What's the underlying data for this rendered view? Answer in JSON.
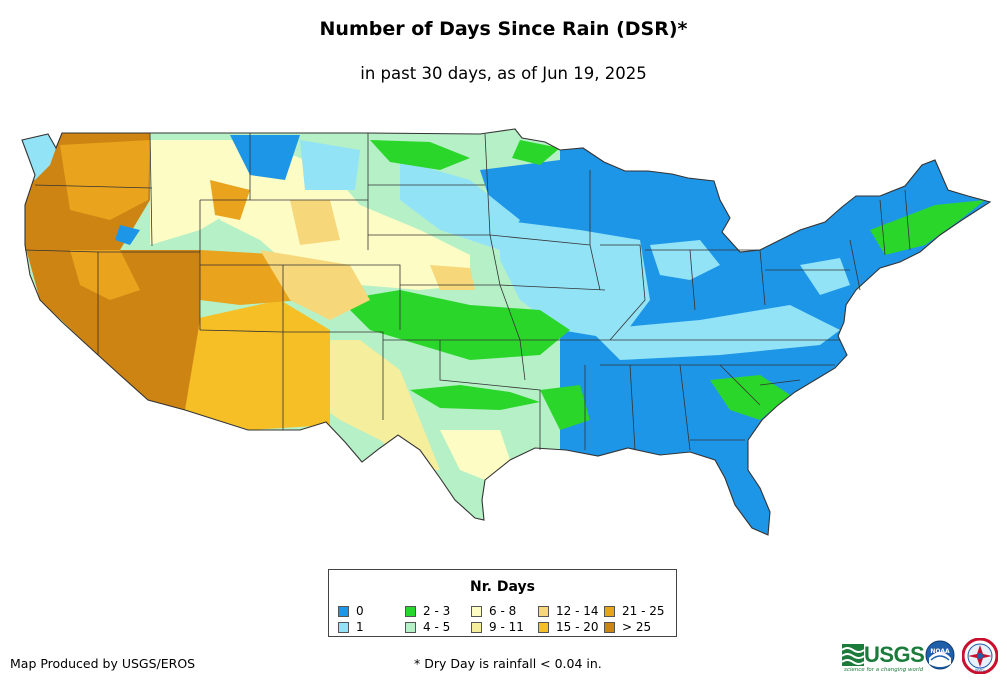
{
  "header": {
    "title": "Number of Days Since Rain (DSR)*",
    "subtitle": "in past 30 days, as of Jun 19, 2025"
  },
  "legend": {
    "title": "Nr. Days",
    "items": [
      {
        "label": "0",
        "color": "#1e96e8"
      },
      {
        "label": "1",
        "color": "#92e3f6"
      },
      {
        "label": "2 - 3",
        "color": "#2bd62b"
      },
      {
        "label": "4 - 5",
        "color": "#b5f0c6"
      },
      {
        "label": "6 - 8",
        "color": "#fdfcc4"
      },
      {
        "label": "9 - 11",
        "color": "#f5ee9c"
      },
      {
        "label": "12 - 14",
        "color": "#f6d77a"
      },
      {
        "label": "15 - 20",
        "color": "#f6bf25"
      },
      {
        "label": "21 - 25",
        "color": "#e9a31d"
      },
      {
        "label": "> 25",
        "color": "#cd8413"
      }
    ]
  },
  "footer": {
    "producer": "Map Produced by USGS/EROS",
    "note": "* Dry Day is rainfall < 0.04 in."
  },
  "logos": {
    "usgs": {
      "wordmark": "USGS",
      "tagline": "science for a changing world"
    },
    "noaa": {
      "wordmark": "NOAA"
    },
    "nws": {
      "wordmark": "NWS"
    }
  },
  "icons": [
    "usgs-logo",
    "noaa-logo",
    "nws-logo"
  ]
}
